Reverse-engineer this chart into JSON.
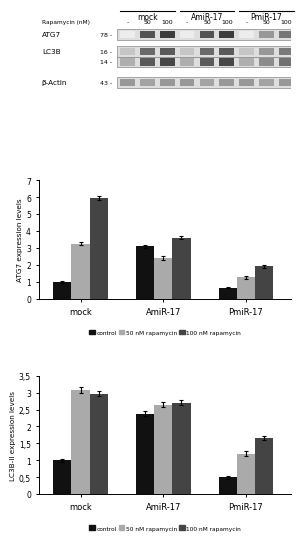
{
  "western_blot": {
    "groups": [
      "mock",
      "AmiR-17",
      "PmiR-17"
    ],
    "rapamycin_labels": [
      "-",
      "50",
      "100",
      "-",
      "50",
      "100",
      "-",
      "50",
      "100"
    ],
    "atg7_label": "ATG7",
    "atg7_kda": "78",
    "lc3b_label": "LC3B",
    "lc3b_kda_top": "16",
    "lc3b_kda_bot": "14",
    "actin_label": "β-Actin",
    "actin_kda": "43"
  },
  "atg7_chart": {
    "ylabel": "ATG7 expression levels",
    "ylim": [
      0,
      7
    ],
    "yticks": [
      0,
      1,
      2,
      3,
      4,
      5,
      6,
      7
    ],
    "ytick_labels": [
      "0",
      "1",
      "2",
      "3",
      "4",
      "5",
      "6",
      "7"
    ],
    "groups": [
      "mock",
      "AmiR-17",
      "PmiR-17"
    ],
    "control_vals": [
      1.0,
      3.1,
      0.65
    ],
    "gray_vals": [
      3.25,
      2.4,
      1.25
    ],
    "dark_vals": [
      5.95,
      3.6,
      1.9
    ],
    "control_err": [
      0.05,
      0.1,
      0.05
    ],
    "gray_err": [
      0.1,
      0.1,
      0.1
    ],
    "dark_err": [
      0.1,
      0.1,
      0.08
    ]
  },
  "lc3b_chart": {
    "ylabel": "LC3B-II expression levels",
    "ylim": [
      0,
      3.5
    ],
    "yticks": [
      0,
      0.5,
      1.0,
      1.5,
      2.0,
      2.5,
      3.0,
      3.5
    ],
    "ytick_labels": [
      "0",
      "0,5",
      "1",
      "1,5",
      "2",
      "2,5",
      "3",
      "3,5"
    ],
    "groups": [
      "mock",
      "AmiR-17",
      "PmiR-17"
    ],
    "control_vals": [
      1.0,
      2.38,
      0.5
    ],
    "gray_vals": [
      3.08,
      2.65,
      1.2
    ],
    "dark_vals": [
      2.97,
      2.7,
      1.67
    ],
    "control_err": [
      0.05,
      0.07,
      0.04
    ],
    "gray_err": [
      0.1,
      0.07,
      0.08
    ],
    "dark_err": [
      0.07,
      0.07,
      0.06
    ]
  },
  "colors": {
    "control": "#111111",
    "gray": "#aaaaaa",
    "dark": "#444444",
    "background": "#ffffff"
  },
  "legend_labels": [
    "control",
    "50 nM rapamycin",
    "100 nM rapamycin"
  ],
  "bar_width": 0.22
}
